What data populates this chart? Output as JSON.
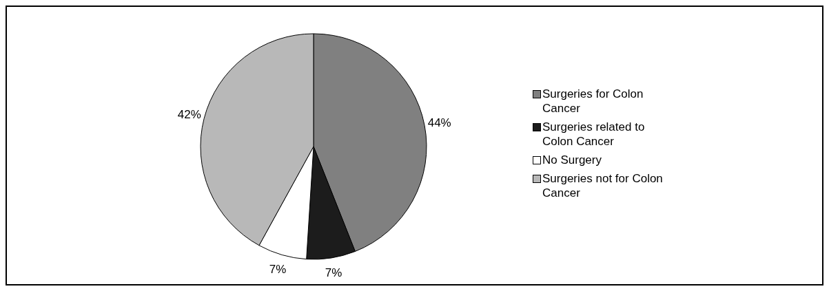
{
  "chart_data": {
    "type": "pie",
    "categories": [
      "Surgeries for Colon Cancer",
      "Surgeries related to Colon Cancer",
      "No Surgery",
      "Surgeries not for Colon Cancer"
    ],
    "values": [
      44,
      7,
      7,
      42
    ],
    "colors": [
      "#808080",
      "#1c1c1c",
      "#ffffff",
      "#b8b8b8"
    ],
    "value_labels": [
      "44%",
      "7%",
      "7%",
      "42%"
    ],
    "legend": "right"
  }
}
